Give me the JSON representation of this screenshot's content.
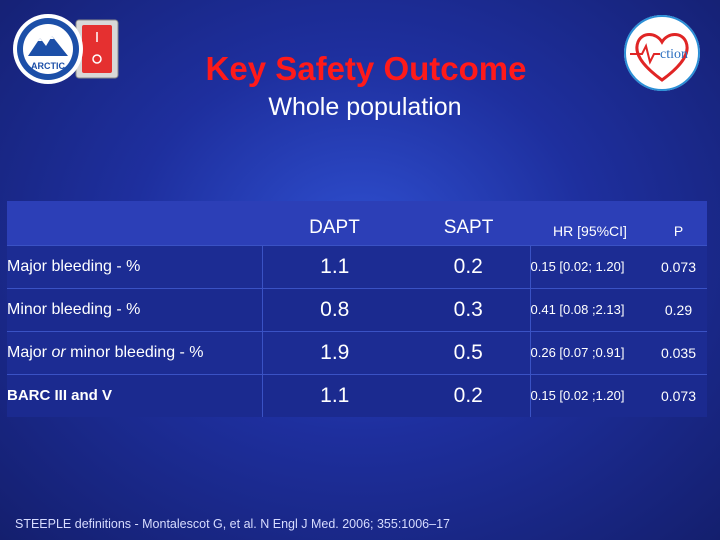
{
  "logos": {
    "left_text": "ARCTIC",
    "right_text": "ction"
  },
  "colors": {
    "title": "#ff1a1a",
    "background": "#1e2f9e"
  },
  "title": "Key Safety Outcome",
  "subtitle": "Whole population",
  "table": {
    "headers": {
      "label": "",
      "dapt": "DAPT",
      "sapt": "SAPT",
      "hr": "HR [95%CI]",
      "p": "P"
    },
    "rows": [
      {
        "label_pre": "Major bleeding - %",
        "label_em": "",
        "label_post": "",
        "dapt": "1.1",
        "sapt": "0.2",
        "hr": "0.15 [0.02; 1.20]",
        "p": "0.073"
      },
      {
        "label_pre": "Minor bleeding - %",
        "label_em": "",
        "label_post": "",
        "dapt": "0.8",
        "sapt": "0.3",
        "hr": "0.41 [0.08 ;2.13]",
        "p": "0.29"
      },
      {
        "label_pre": "Major ",
        "label_em": "or",
        "label_post": " minor bleeding - %",
        "dapt": "1.9",
        "sapt": "0.5",
        "hr": "0.26 [0.07 ;0.91]",
        "p": "0.035"
      },
      {
        "label_pre": "BARC III and V",
        "label_em": "",
        "label_post": "",
        "dapt": "1.1",
        "sapt": "0.2",
        "hr": "0.15 [0.02 ;1.20]",
        "p": "0.073"
      }
    ]
  },
  "footnote": "STEEPLE definitions - Montalescot G, et al. N Engl J Med. 2006; 355:1006–17"
}
